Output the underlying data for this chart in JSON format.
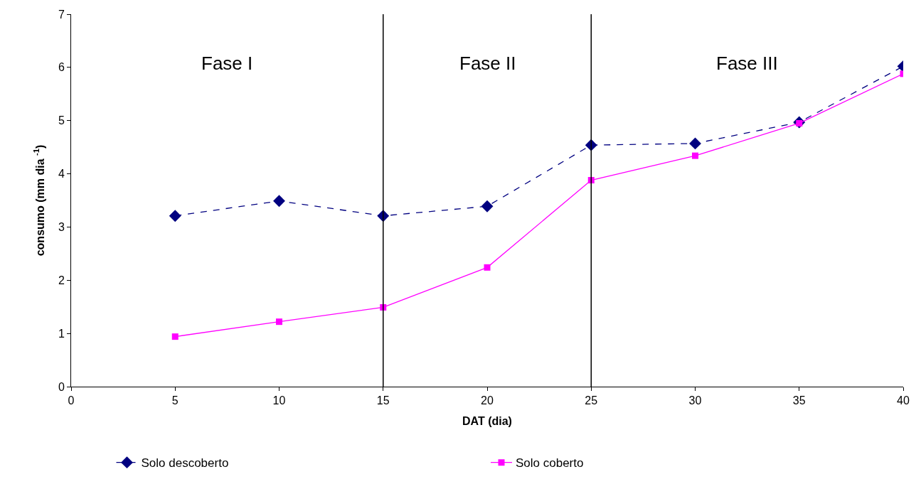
{
  "chart_data": {
    "type": "line",
    "xlabel": "DAT (dia)",
    "ylabel": "consumo (mm dia $^{-1}$)",
    "x": [
      5,
      10,
      15,
      20,
      25,
      30,
      35,
      40
    ],
    "series": [
      {
        "name": "Solo descoberto",
        "color": "#000080",
        "marker": "diamond",
        "line_style": "dashed",
        "values": [
          3.21,
          3.49,
          3.21,
          3.39,
          4.54,
          4.57,
          4.97,
          6.02
        ]
      },
      {
        "name": "Solo coberto",
        "color": "#ff00ff",
        "marker": "square",
        "line_style": "solid",
        "values": [
          0.94,
          1.22,
          1.49,
          2.24,
          3.88,
          4.34,
          4.95,
          5.88
        ]
      }
    ],
    "xlim": [
      0,
      40
    ],
    "xticks": [
      0,
      5,
      10,
      15,
      20,
      25,
      30,
      35,
      40
    ],
    "ylim": [
      0,
      7
    ],
    "yticks": [
      0,
      1,
      2,
      3,
      4,
      5,
      6,
      7
    ],
    "ref_lines": [
      {
        "axis": "x",
        "value": 15,
        "color": "#000000"
      },
      {
        "axis": "x",
        "value": 25,
        "color": "#000000"
      }
    ],
    "annotations": [
      "Fase I",
      "Fase II",
      "Fase III"
    ],
    "grid": false,
    "legend": "bottom"
  }
}
